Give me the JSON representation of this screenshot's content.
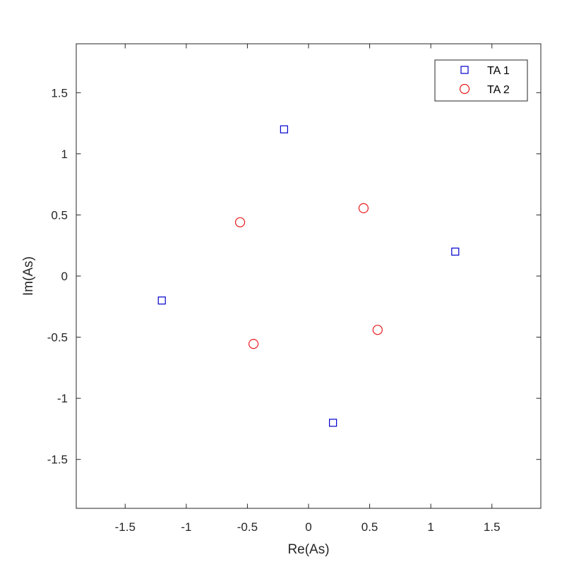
{
  "chart_data": {
    "type": "scatter",
    "xlabel": "Re(As)",
    "ylabel": "Im(As)",
    "xlim": [
      -1.9,
      1.9
    ],
    "ylim": [
      -1.9,
      1.9
    ],
    "xticks": [
      -1.5,
      -1,
      -0.5,
      0,
      0.5,
      1,
      1.5
    ],
    "yticks": [
      -1.5,
      -1,
      -0.5,
      0,
      0.5,
      1,
      1.5
    ],
    "xtick_labels": [
      "-1.5",
      "-1",
      "-0.5",
      "0",
      "0.5",
      "1",
      "1.5"
    ],
    "ytick_labels": [
      "-1.5",
      "-1",
      "-0.5",
      "0",
      "0.5",
      "1",
      "1.5"
    ],
    "grid": false,
    "legend_position": "top-right",
    "series": [
      {
        "name": "TA 1",
        "marker": "square",
        "color": "#0000cc",
        "points": [
          [
            -0.2,
            1.2
          ],
          [
            1.2,
            0.2
          ],
          [
            -1.2,
            -0.2
          ],
          [
            0.2,
            -1.2
          ]
        ]
      },
      {
        "name": "TA 2",
        "marker": "circle",
        "color": "#e8191c",
        "points": [
          [
            -0.56,
            0.44
          ],
          [
            0.45,
            0.555
          ],
          [
            -0.45,
            -0.555
          ],
          [
            0.565,
            -0.44
          ]
        ]
      }
    ]
  }
}
